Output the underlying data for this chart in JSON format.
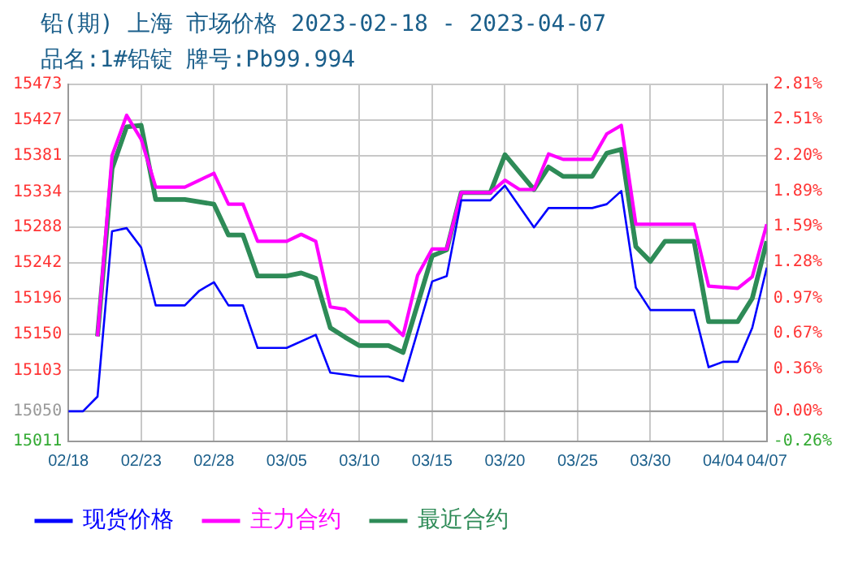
{
  "chart_data": {
    "type": "line",
    "title": "铅(期) 上海 市场价格 2023-02-18 - 2023-04-07",
    "subtitle": "品名:1#铅锭 牌号:Pb99.994",
    "xlim": [
      "2023-02-18",
      "2023-04-07"
    ],
    "xticks": [
      {
        "value": "2023-02-18",
        "label": "02/18"
      },
      {
        "value": "2023-02-23",
        "label": "02/23"
      },
      {
        "value": "2023-02-28",
        "label": "02/28"
      },
      {
        "value": "2023-03-05",
        "label": "03/05"
      },
      {
        "value": "2023-03-10",
        "label": "03/10"
      },
      {
        "value": "2023-03-15",
        "label": "03/15"
      },
      {
        "value": "2023-03-20",
        "label": "03/20"
      },
      {
        "value": "2023-03-25",
        "label": "03/25"
      },
      {
        "value": "2023-03-30",
        "label": "03/30"
      },
      {
        "value": "2023-04-04",
        "label": "04/04"
      },
      {
        "value": "2023-04-07",
        "label": "04/07"
      }
    ],
    "ylim": [
      15011,
      15473
    ],
    "yticks": [
      15011,
      15050,
      15103,
      15150,
      15196,
      15242,
      15288,
      15334,
      15381,
      15427,
      15473
    ],
    "y2lim": [
      -0.26,
      2.81
    ],
    "y2ticks": [
      {
        "value": -0.26,
        "label": "-0.26%"
      },
      {
        "value": 0,
        "label": "0.00%"
      },
      {
        "value": 0.36,
        "label": "0.36%"
      },
      {
        "value": 0.67,
        "label": "0.67%"
      },
      {
        "value": 0.97,
        "label": "0.97%"
      },
      {
        "value": 1.28,
        "label": "1.28%"
      },
      {
        "value": 1.59,
        "label": "1.59%"
      },
      {
        "value": 1.89,
        "label": "1.89%"
      },
      {
        "value": 2.2,
        "label": "2.20%"
      },
      {
        "value": 2.51,
        "label": "2.51%"
      },
      {
        "value": 2.81,
        "label": "2.81%"
      }
    ],
    "ref_lines": [
      {
        "axis": "y",
        "value": 15050,
        "color": "#999999"
      }
    ],
    "grid": true,
    "legend": "bottom",
    "marker": "none",
    "line_style": "solid",
    "series": [
      {
        "name": "现货价格",
        "color": "#0000ff",
        "x": [
          "2023-02-18",
          "2023-02-19",
          "2023-02-20",
          "2023-02-21",
          "2023-02-22",
          "2023-02-23",
          "2023-02-24",
          "2023-02-26",
          "2023-02-27",
          "2023-02-28",
          "2023-03-01",
          "2023-03-02",
          "2023-03-03",
          "2023-03-05",
          "2023-03-07",
          "2023-03-08",
          "2023-03-10",
          "2023-03-12",
          "2023-03-13",
          "2023-03-15",
          "2023-03-16",
          "2023-03-17",
          "2023-03-19",
          "2023-03-20",
          "2023-03-22",
          "2023-03-23",
          "2023-03-26",
          "2023-03-27",
          "2023-03-28",
          "2023-03-29",
          "2023-03-30",
          "2023-04-02",
          "2023-04-03",
          "2023-04-04",
          "2023-04-05",
          "2023-04-06",
          "2023-04-07"
        ],
        "values": [
          15050,
          15050,
          15069,
          15283,
          15287,
          15262,
          15187,
          15187,
          15206,
          15217,
          15187,
          15187,
          15132,
          15132,
          15149,
          15100,
          15095,
          15095,
          15089,
          15218,
          15225,
          15323,
          15323,
          15342,
          15288,
          15313,
          15313,
          15318,
          15335,
          15210,
          15181,
          15181,
          15107,
          15114,
          15114,
          15158,
          15236
        ]
      },
      {
        "name": "主力合约",
        "color": "#ff00ff",
        "x": [
          "2023-02-20",
          "2023-02-21",
          "2023-02-22",
          "2023-02-23",
          "2023-02-24",
          "2023-02-26",
          "2023-02-27",
          "2023-02-28",
          "2023-03-01",
          "2023-03-02",
          "2023-03-03",
          "2023-03-05",
          "2023-03-06",
          "2023-03-07",
          "2023-03-08",
          "2023-03-09",
          "2023-03-10",
          "2023-03-12",
          "2023-03-13",
          "2023-03-14",
          "2023-03-15",
          "2023-03-16",
          "2023-03-17",
          "2023-03-19",
          "2023-03-20",
          "2023-03-21",
          "2023-03-22",
          "2023-03-23",
          "2023-03-24",
          "2023-03-26",
          "2023-03-27",
          "2023-03-28",
          "2023-03-29",
          "2023-04-02",
          "2023-04-03",
          "2023-04-05",
          "2023-04-06",
          "2023-04-07"
        ],
        "values": [
          15147,
          15381,
          15433,
          15402,
          15340,
          15340,
          15349,
          15358,
          15318,
          15318,
          15270,
          15270,
          15279,
          15270,
          15185,
          15182,
          15166,
          15166,
          15148,
          15226,
          15260,
          15260,
          15333,
          15333,
          15349,
          15337,
          15337,
          15383,
          15376,
          15376,
          15409,
          15420,
          15292,
          15292,
          15212,
          15209,
          15224,
          15292
        ]
      },
      {
        "name": "最近合约",
        "color": "#2e8b57",
        "x": [
          "2023-02-20",
          "2023-02-21",
          "2023-02-22",
          "2023-02-23",
          "2023-02-24",
          "2023-02-26",
          "2023-02-28",
          "2023-03-01",
          "2023-03-02",
          "2023-03-03",
          "2023-03-05",
          "2023-03-06",
          "2023-03-07",
          "2023-03-08",
          "2023-03-09",
          "2023-03-10",
          "2023-03-12",
          "2023-03-13",
          "2023-03-15",
          "2023-03-16",
          "2023-03-17",
          "2023-03-19",
          "2023-03-20",
          "2023-03-22",
          "2023-03-23",
          "2023-03-24",
          "2023-03-26",
          "2023-03-27",
          "2023-03-28",
          "2023-03-29",
          "2023-03-30",
          "2023-03-31",
          "2023-04-02",
          "2023-04-03",
          "2023-04-05",
          "2023-04-06",
          "2023-04-07"
        ],
        "values": [
          15147,
          15364,
          15418,
          15420,
          15324,
          15324,
          15318,
          15278,
          15278,
          15225,
          15225,
          15229,
          15222,
          15158,
          15146,
          15135,
          15135,
          15126,
          15251,
          15259,
          15333,
          15333,
          15382,
          15337,
          15366,
          15354,
          15354,
          15384,
          15389,
          15263,
          15244,
          15270,
          15270,
          15166,
          15166,
          15196,
          15270
        ]
      }
    ]
  }
}
